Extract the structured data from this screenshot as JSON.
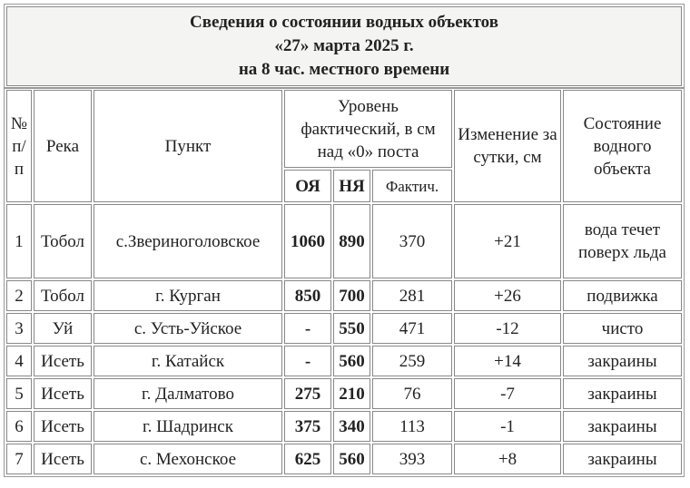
{
  "title": {
    "line1": "Сведения о состоянии водных объектов",
    "line2": "«27» марта 2025 г.",
    "line3": "на 8 час. местного времени"
  },
  "headers": {
    "num": "№ п/п",
    "river": "Река",
    "point": "Пункт",
    "level": "Уровень фактический, в см над «0» поста",
    "oya": "ОЯ",
    "nya": "НЯ",
    "fact": "Фактич.",
    "change": "Изменение за сутки, см",
    "state": "Состояние водного объекта"
  },
  "rows": [
    {
      "n": "1",
      "river": "Тобол",
      "point": "с.Звериноголовское",
      "oya": "1060",
      "nya": "890",
      "fact": "370",
      "change": "+21",
      "state": "вода течет поверх льда"
    },
    {
      "n": "2",
      "river": "Тобол",
      "point": "г. Курган",
      "oya": "850",
      "nya": "700",
      "fact": "281",
      "change": "+26",
      "state": "подвижка"
    },
    {
      "n": "3",
      "river": "Уй",
      "point": "с. Усть-Уйское",
      "oya": "-",
      "nya": "550",
      "fact": "471",
      "change": "-12",
      "state": "чисто"
    },
    {
      "n": "4",
      "river": "Исеть",
      "point": "г. Катайск",
      "oya": "-",
      "nya": "560",
      "fact": "259",
      "change": "+14",
      "state": "закраины"
    },
    {
      "n": "5",
      "river": "Исеть",
      "point": "г. Далматово",
      "oya": "275",
      "nya": "210",
      "fact": "76",
      "change": "-7",
      "state": "закраины"
    },
    {
      "n": "6",
      "river": "Исеть",
      "point": "г. Шадринск",
      "oya": "375",
      "nya": "340",
      "fact": "113",
      "change": "-1",
      "state": "закраины"
    },
    {
      "n": "7",
      "river": "Исеть",
      "point": "с. Мехонское",
      "oya": "625",
      "nya": "560",
      "fact": "393",
      "change": "+8",
      "state": "закраины"
    }
  ]
}
